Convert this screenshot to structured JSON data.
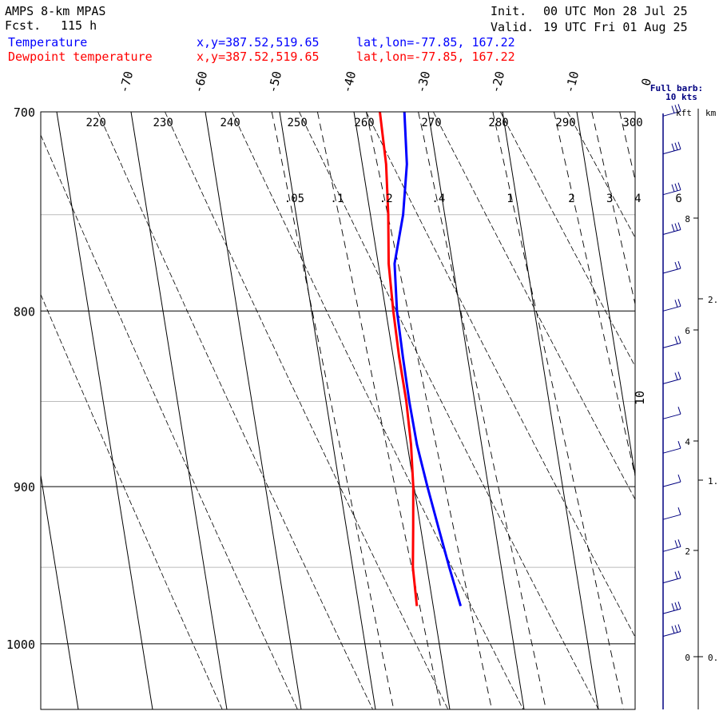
{
  "header": {
    "model": "AMPS 8-km MPAS",
    "forecast_label": "Fcst.",
    "forecast_hours": "115 h",
    "init_label": "Init.",
    "init_time": "00 UTC Mon 28 Jul 25",
    "valid_label": "Valid.",
    "valid_time": "19 UTC Fri 01 Aug 25"
  },
  "legend": [
    {
      "name": "Temperature",
      "color": "#0000ff",
      "xy": "x,y=387.52,519.65",
      "latlon": "lat,lon=-77.85, 167.22"
    },
    {
      "name": "Dewpoint temperature",
      "color": "#ff0000",
      "xy": "x,y=387.52,519.65",
      "latlon": "lat,lon=-77.85, 167.22"
    }
  ],
  "wind_key": {
    "line1": "Full barb:",
    "line2": "10 kts"
  },
  "height_axis": {
    "kft_label": "kft",
    "km_label": "km",
    "kft_ticks": [
      "8",
      "6",
      "4",
      "2",
      "0"
    ],
    "km_ticks": [
      "2.",
      "1.",
      "0."
    ]
  },
  "chart_data": {
    "type": "line",
    "diagram": "skew-T log-P",
    "y_axis": {
      "quantity": "pressure",
      "unit": "hPa",
      "scale": "log",
      "range": [
        1045,
        700
      ],
      "tick_labels": [
        "700",
        "800",
        "900",
        "1000"
      ],
      "gridlines_hPa": [
        700,
        750,
        800,
        850,
        900,
        950,
        1000
      ]
    },
    "temperature_ticks_C": [
      "-70",
      "-60",
      "-50",
      "-40",
      "-30",
      "-20",
      "-10",
      "0"
    ],
    "theta_labels_K": [
      "220",
      "230",
      "240",
      "250",
      "260",
      "270",
      "280",
      "290",
      "300"
    ],
    "mixing_ratio_labels_gkg": [
      ".05",
      ".1",
      ".2",
      ".4",
      "1",
      "2",
      "3",
      "4",
      "6"
    ],
    "theta_e_label": "10",
    "series": [
      {
        "name": "Temperature",
        "color": "#0000ff",
        "points": [
          [
            700,
            -33.2
          ],
          [
            725,
            -34.0
          ],
          [
            750,
            -35.6
          ],
          [
            775,
            -37.8
          ],
          [
            800,
            -38.5
          ],
          [
            825,
            -38.7
          ],
          [
            850,
            -38.8
          ],
          [
            875,
            -38.7
          ],
          [
            900,
            -38.2
          ],
          [
            925,
            -37.6
          ],
          [
            950,
            -37.0
          ],
          [
            975,
            -36.3
          ]
        ]
      },
      {
        "name": "Dewpoint temperature",
        "color": "#ff0000",
        "points": [
          [
            700,
            -36.5
          ],
          [
            725,
            -36.8
          ],
          [
            750,
            -37.6
          ],
          [
            775,
            -38.6
          ],
          [
            800,
            -39.0
          ],
          [
            825,
            -39.2
          ],
          [
            850,
            -39.2
          ],
          [
            875,
            -39.5
          ],
          [
            900,
            -40.1
          ],
          [
            925,
            -41.0
          ],
          [
            950,
            -41.9
          ],
          [
            975,
            -42.2
          ]
        ]
      }
    ],
    "wind_profile_kt": [
      [
        702,
        33
      ],
      [
        720,
        30
      ],
      [
        740,
        28
      ],
      [
        760,
        26
      ],
      [
        780,
        24
      ],
      [
        800,
        22
      ],
      [
        820,
        20
      ],
      [
        840,
        18
      ],
      [
        860,
        14
      ],
      [
        880,
        10
      ],
      [
        900,
        8
      ],
      [
        920,
        10
      ],
      [
        940,
        16
      ],
      [
        960,
        20
      ],
      [
        980,
        25
      ],
      [
        995,
        30
      ]
    ]
  }
}
